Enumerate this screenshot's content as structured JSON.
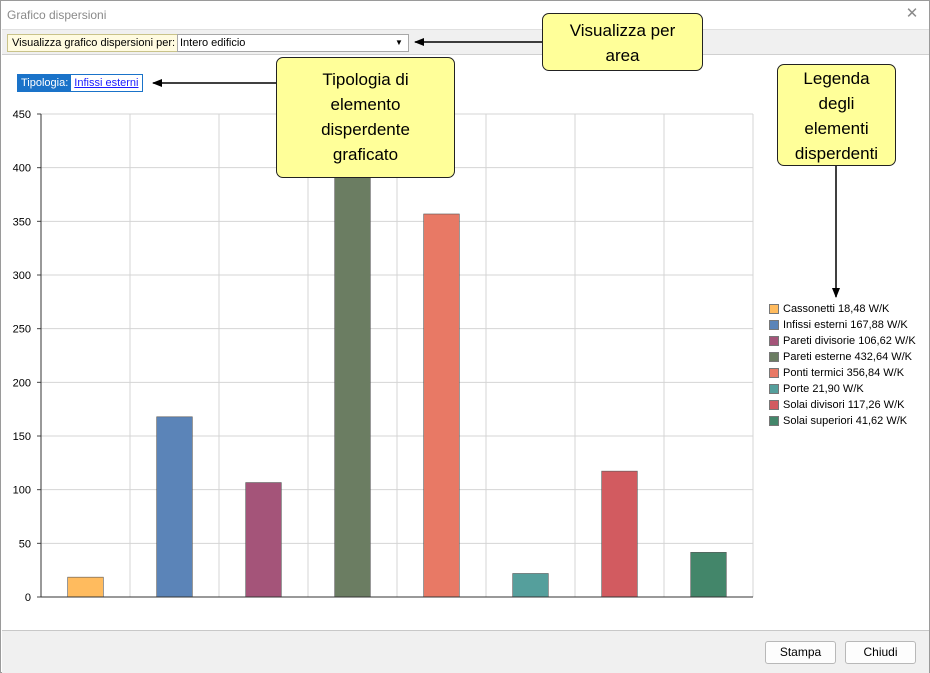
{
  "window": {
    "title": "Grafico dispersioni",
    "close_glyph": "✕"
  },
  "toolbar": {
    "label": "Visualizza grafico dispersioni per:",
    "area_value": "Intero edificio",
    "dropdown_glyph": "▼"
  },
  "tipologia": {
    "label": "Tipologia:",
    "value": "Infissi esterni"
  },
  "callouts": {
    "area": [
      "Visualizza per",
      "area"
    ],
    "tipologia": [
      "Tipologia di",
      "elemento",
      "disperdente",
      "graficato"
    ],
    "legenda": [
      "Legenda",
      "degli",
      "elementi",
      "disperdenti"
    ]
  },
  "chart_data": {
    "type": "bar",
    "title": "",
    "xlabel": "",
    "ylabel": "",
    "ylim": [
      0,
      450
    ],
    "yticks": [
      0,
      50,
      100,
      150,
      200,
      250,
      300,
      350,
      400,
      450
    ],
    "grid": true,
    "legend_position": "right",
    "categories": [
      "Cassonetti",
      "Infissi esterni",
      "Pareti divisorie",
      "Pareti esterne",
      "Ponti termici",
      "Porte",
      "Solai divisori",
      "Solai superiori"
    ],
    "values": [
      18.48,
      167.88,
      106.62,
      432.64,
      356.84,
      21.9,
      117.26,
      41.62
    ],
    "colors": [
      "#ffbb5e",
      "#5b84b8",
      "#a45479",
      "#6b7d62",
      "#e87965",
      "#559f9c",
      "#d25b60",
      "#43866a"
    ],
    "legend": [
      "Cassonetti 18,48 W/K",
      "Infissi esterni 167,88 W/K",
      "Pareti divisorie 106,62 W/K",
      "Pareti esterne 432,64 W/K",
      "Ponti termici 356,84 W/K",
      "Porte 21,90 W/K",
      "Solai divisori 117,26 W/K",
      "Solai superiori 41,62 W/K"
    ]
  },
  "footer": {
    "print_label": "Stampa",
    "close_label": "Chiudi"
  }
}
